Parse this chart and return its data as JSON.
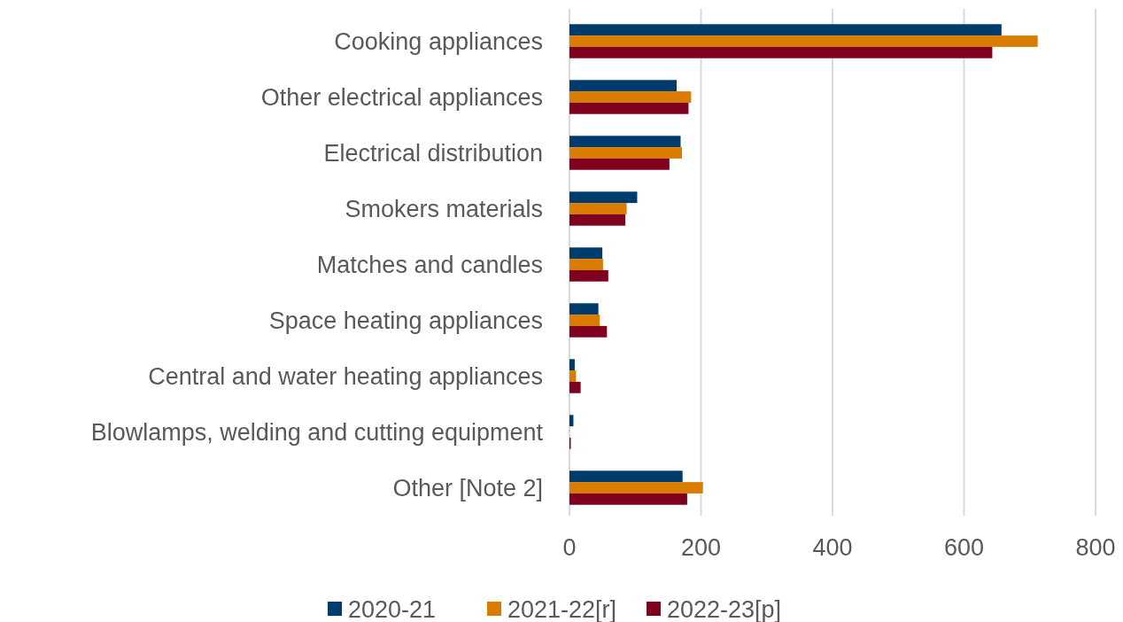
{
  "chart_data": {
    "type": "bar",
    "orientation": "horizontal",
    "categories": [
      "Cooking appliances",
      "Other electrical appliances",
      "Electrical distribution",
      "Smokers materials",
      "Matches and candles",
      "Space heating appliances",
      "Central and water heating appliances",
      "Blowlamps, welding and cutting equipment",
      "Other [Note 2]"
    ],
    "series": [
      {
        "name": "2020-21",
        "color": "#003c6b",
        "values": [
          657,
          163,
          169,
          103,
          50,
          44,
          8,
          6,
          172
        ]
      },
      {
        "name": "2021-22[r]",
        "color": "#d97c00",
        "values": [
          712,
          185,
          171,
          87,
          51,
          46,
          10,
          0,
          203
        ]
      },
      {
        "name": "2022-23[p]",
        "color": "#800020",
        "values": [
          643,
          181,
          152,
          85,
          59,
          57,
          17,
          2,
          179
        ]
      }
    ],
    "xlim": [
      0,
      800
    ],
    "xticks": [
      0,
      200,
      400,
      600,
      800
    ],
    "grid": "x",
    "legend": "bottom"
  }
}
